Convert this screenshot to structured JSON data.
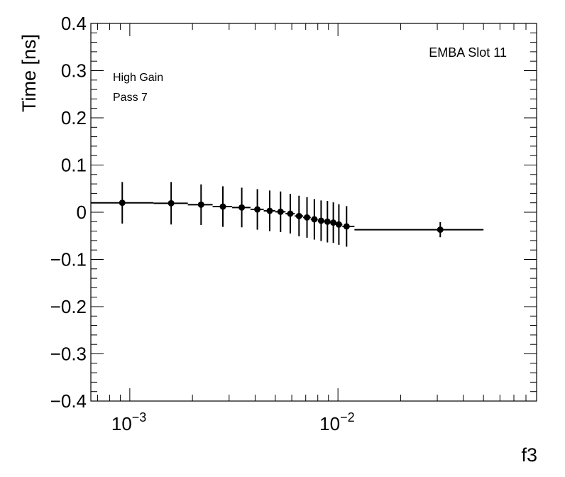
{
  "chart_data": {
    "type": "scatter",
    "xlabel": "f3",
    "ylabel": "Time [ns]",
    "xscale": "log",
    "xlim": [
      0.00065,
      0.09
    ],
    "ylim": [
      -0.4,
      0.4
    ],
    "y_ticks": [
      "0.4",
      "0.3",
      "0.2",
      "0.1",
      "0",
      "−0.1",
      "−0.2",
      "−0.3",
      "−0.4"
    ],
    "x_tick_labels": [
      {
        "base": "10",
        "exp": "−3"
      },
      {
        "base": "10",
        "exp": "−2"
      }
    ],
    "annotations": {
      "top_right": "EMBA Slot 11",
      "line1": "High Gain",
      "line2": "Pass 7"
    },
    "series": [
      {
        "marker_color": "#000000",
        "points": [
          {
            "x": 0.00092,
            "y": 0.02,
            "yerr": 0.044,
            "xlo": 0.00065,
            "xhi": 0.0013
          },
          {
            "x": 0.00158,
            "y": 0.019,
            "yerr": 0.045,
            "xlo": 0.0013,
            "xhi": 0.0019
          },
          {
            "x": 0.0022,
            "y": 0.016,
            "yerr": 0.043,
            "xlo": 0.0019,
            "xhi": 0.0025
          },
          {
            "x": 0.0028,
            "y": 0.012,
            "yerr": 0.043,
            "xlo": 0.0025,
            "xhi": 0.0031
          },
          {
            "x": 0.00345,
            "y": 0.01,
            "yerr": 0.042,
            "xlo": 0.0031,
            "xhi": 0.0038
          },
          {
            "x": 0.0041,
            "y": 0.006,
            "yerr": 0.043,
            "xlo": 0.0038,
            "xhi": 0.0044
          },
          {
            "x": 0.0047,
            "y": 0.003,
            "yerr": 0.043,
            "xlo": 0.0044,
            "xhi": 0.005
          },
          {
            "x": 0.0053,
            "y": 0.001,
            "yerr": 0.043,
            "xlo": 0.005,
            "xhi": 0.0056
          },
          {
            "x": 0.0059,
            "y": -0.003,
            "yerr": 0.042,
            "xlo": 0.0056,
            "xhi": 0.0062
          },
          {
            "x": 0.0065,
            "y": -0.008,
            "yerr": 0.043,
            "xlo": 0.0062,
            "xhi": 0.0068
          },
          {
            "x": 0.0071,
            "y": -0.011,
            "yerr": 0.043,
            "xlo": 0.0068,
            "xhi": 0.0074
          },
          {
            "x": 0.0077,
            "y": -0.015,
            "yerr": 0.043,
            "xlo": 0.0074,
            "xhi": 0.008
          },
          {
            "x": 0.0083,
            "y": -0.018,
            "yerr": 0.043,
            "xlo": 0.008,
            "xhi": 0.0086
          },
          {
            "x": 0.0089,
            "y": -0.02,
            "yerr": 0.044,
            "xlo": 0.0086,
            "xhi": 0.0092
          },
          {
            "x": 0.0095,
            "y": -0.022,
            "yerr": 0.043,
            "xlo": 0.0092,
            "xhi": 0.0098
          },
          {
            "x": 0.0101,
            "y": -0.026,
            "yerr": 0.043,
            "xlo": 0.0098,
            "xhi": 0.0105
          },
          {
            "x": 0.011,
            "y": -0.03,
            "yerr": 0.043,
            "xlo": 0.0105,
            "xhi": 0.012
          },
          {
            "x": 0.031,
            "y": -0.037,
            "yerr": 0.016,
            "xlo": 0.012,
            "xhi": 0.05
          }
        ]
      }
    ]
  }
}
